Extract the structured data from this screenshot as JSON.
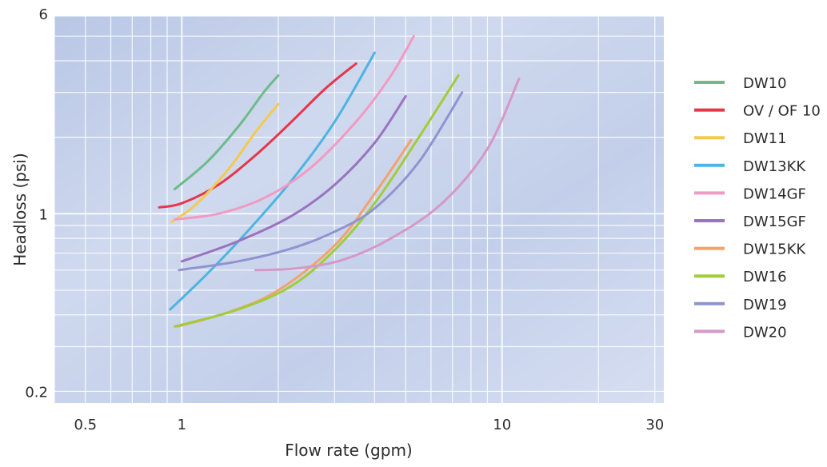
{
  "chart_data": {
    "type": "line",
    "xlabel": "Flow rate (gpm)",
    "ylabel": "Headloss (psi)",
    "x_scale": "log",
    "y_scale": "log",
    "xlim": [
      0.4,
      32
    ],
    "ylim": [
      0.18,
      6
    ],
    "x_ticks": [
      {
        "value": 0.5,
        "label": "0.5"
      },
      {
        "value": 1,
        "label": "1"
      },
      {
        "value": 10,
        "label": "10"
      },
      {
        "value": 30,
        "label": "30"
      }
    ],
    "y_ticks": [
      {
        "value": 0.2,
        "label": "0.2"
      },
      {
        "value": 1,
        "label": "1"
      },
      {
        "value": 6,
        "label": "6"
      }
    ],
    "grid": true,
    "legend_position": "right",
    "series": [
      {
        "name": "DW10",
        "color": "#6dbb8c",
        "x": [
          0.95,
          1.2,
          1.5,
          1.8,
          2.0
        ],
        "y": [
          1.25,
          1.6,
          2.2,
          3.0,
          3.5
        ]
      },
      {
        "name": "OV / OF 10",
        "color": "#e8354a",
        "x": [
          0.85,
          1.0,
          1.3,
          1.7,
          2.2,
          2.8,
          3.5
        ],
        "y": [
          1.06,
          1.1,
          1.3,
          1.7,
          2.3,
          3.1,
          3.9
        ]
      },
      {
        "name": "DW11",
        "color": "#f5c94e",
        "x": [
          0.93,
          1.1,
          1.4,
          1.7,
          2.0
        ],
        "y": [
          0.93,
          1.08,
          1.5,
          2.1,
          2.7
        ]
      },
      {
        "name": "DW13KK",
        "color": "#4eb4e2",
        "x": [
          0.92,
          1.2,
          1.6,
          2.2,
          3.0,
          4.0
        ],
        "y": [
          0.42,
          0.58,
          0.85,
          1.35,
          2.3,
          4.3
        ]
      },
      {
        "name": "DW14GF",
        "color": "#f29ac2",
        "x": [
          0.95,
          1.3,
          1.8,
          2.5,
          3.5,
          4.5,
          5.3
        ],
        "y": [
          0.95,
          1.0,
          1.15,
          1.5,
          2.3,
          3.5,
          5.0
        ]
      },
      {
        "name": "DW15GF",
        "color": "#9b73bf",
        "x": [
          1.0,
          1.5,
          2.2,
          3.0,
          4.0,
          5.0
        ],
        "y": [
          0.65,
          0.78,
          0.98,
          1.3,
          1.9,
          2.9
        ]
      },
      {
        "name": "DW15KK",
        "color": "#f3a26c",
        "x": [
          0.97,
          1.4,
          2.0,
          3.0,
          4.0,
          5.2
        ],
        "y": [
          0.36,
          0.41,
          0.5,
          0.75,
          1.2,
          1.95
        ]
      },
      {
        "name": "DW16",
        "color": "#9fcd3a",
        "x": [
          0.95,
          1.5,
          2.2,
          3.0,
          4.0,
          5.5,
          7.3
        ],
        "y": [
          0.36,
          0.42,
          0.52,
          0.72,
          1.1,
          2.0,
          3.5
        ]
      },
      {
        "name": "DW19",
        "color": "#8f94d0",
        "x": [
          0.98,
          1.5,
          2.2,
          3.0,
          4.0,
          5.5,
          7.5
        ],
        "y": [
          0.6,
          0.65,
          0.73,
          0.85,
          1.05,
          1.6,
          3.0
        ]
      },
      {
        "name": "DW20",
        "color": "#d598c8",
        "x": [
          1.7,
          2.3,
          3.2,
          4.5,
          6.5,
          9.0,
          11.3
        ],
        "y": [
          0.6,
          0.61,
          0.66,
          0.8,
          1.1,
          1.8,
          3.4
        ]
      }
    ]
  }
}
